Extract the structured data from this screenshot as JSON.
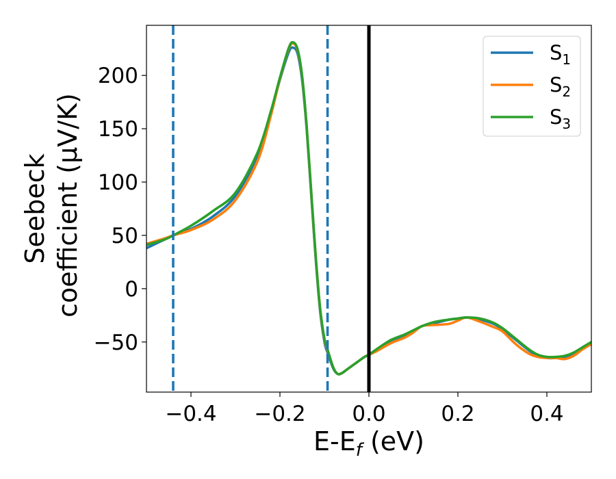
{
  "chart_data": {
    "type": "line",
    "xlabel": "E-E",
    "xlabel_subscript": "f",
    "xlabel_unit": " (eV)",
    "ylabel_line1": "Seebeck",
    "ylabel_line2": "coefficient  (μV/K)",
    "xlim": [
      -0.5,
      0.5
    ],
    "ylim": [
      -97,
      247
    ],
    "xticks": [
      -0.4,
      -0.2,
      0.0,
      0.2,
      0.4
    ],
    "xtick_labels": [
      "−0.4",
      "−0.2",
      "0.0",
      "0.2",
      "0.4"
    ],
    "yticks": [
      -50,
      0,
      50,
      100,
      150,
      200
    ],
    "ytick_labels": [
      "−50",
      "0",
      "50",
      "100",
      "150",
      "200"
    ],
    "grid": false,
    "legend_position": "top-right",
    "vertical_lines": [
      {
        "x": -0.44,
        "style": "dashed",
        "color": "#1f77b4"
      },
      {
        "x": -0.093,
        "style": "dashed",
        "color": "#1f77b4"
      },
      {
        "x": 0.0,
        "style": "solid",
        "color": "#000000"
      }
    ],
    "series": [
      {
        "name": "S",
        "subscript": "1",
        "color": "#1f77b4",
        "x": [
          -0.5,
          -0.46,
          -0.44,
          -0.4,
          -0.35,
          -0.3,
          -0.25,
          -0.22,
          -0.2,
          -0.18,
          -0.17,
          -0.16,
          -0.15,
          -0.14,
          -0.13,
          -0.12,
          -0.11,
          -0.1,
          -0.093,
          -0.08,
          -0.07,
          -0.06,
          -0.05,
          -0.03,
          -0.01,
          0.0,
          0.02,
          0.05,
          0.08,
          0.1,
          0.12,
          0.15,
          0.18,
          0.2,
          0.22,
          0.25,
          0.28,
          0.3,
          0.33,
          0.36,
          0.38,
          0.4,
          0.42,
          0.44,
          0.46,
          0.48,
          0.5
        ],
        "y": [
          38,
          46,
          50,
          56,
          68,
          87,
          125,
          165,
          196,
          222,
          226,
          220,
          195,
          150,
          90,
          30,
          -20,
          -50,
          -60,
          -75,
          -80,
          -79,
          -76,
          -70,
          -64,
          -62,
          -57,
          -50,
          -44,
          -40,
          -35,
          -32,
          -29,
          -28,
          -27,
          -29,
          -33,
          -38,
          -48,
          -58,
          -63,
          -65,
          -65,
          -64,
          -61,
          -56,
          -51
        ]
      },
      {
        "name": "S",
        "subscript": "2",
        "color": "#ff7f0e",
        "x": [
          -0.5,
          -0.46,
          -0.44,
          -0.4,
          -0.35,
          -0.3,
          -0.25,
          -0.22,
          -0.2,
          -0.18,
          -0.17,
          -0.16,
          -0.15,
          -0.14,
          -0.13,
          -0.12,
          -0.11,
          -0.1,
          -0.093,
          -0.08,
          -0.07,
          -0.06,
          -0.05,
          -0.03,
          -0.01,
          0.0,
          0.02,
          0.05,
          0.08,
          0.1,
          0.12,
          0.15,
          0.18,
          0.2,
          0.22,
          0.25,
          0.28,
          0.3,
          0.33,
          0.36,
          0.38,
          0.4,
          0.42,
          0.44,
          0.46,
          0.48,
          0.5
        ],
        "y": [
          42,
          47,
          50,
          55,
          65,
          83,
          120,
          163,
          197,
          225,
          230,
          223,
          198,
          152,
          92,
          32,
          -18,
          -48,
          -58,
          -74,
          -80,
          -79,
          -76,
          -70,
          -64,
          -62,
          -58,
          -51,
          -46,
          -41,
          -35,
          -34,
          -33,
          -30,
          -27,
          -31,
          -36,
          -40,
          -52,
          -61,
          -64,
          -65,
          -65,
          -66,
          -63,
          -57,
          -52
        ]
      },
      {
        "name": "S",
        "subscript": "3",
        "color": "#2ca02c",
        "x": [
          -0.5,
          -0.46,
          -0.44,
          -0.4,
          -0.35,
          -0.3,
          -0.25,
          -0.22,
          -0.2,
          -0.18,
          -0.17,
          -0.16,
          -0.15,
          -0.14,
          -0.13,
          -0.12,
          -0.11,
          -0.1,
          -0.093,
          -0.08,
          -0.07,
          -0.06,
          -0.05,
          -0.03,
          -0.01,
          0.0,
          0.02,
          0.05,
          0.08,
          0.1,
          0.12,
          0.15,
          0.18,
          0.2,
          0.22,
          0.25,
          0.28,
          0.3,
          0.33,
          0.36,
          0.38,
          0.4,
          0.42,
          0.44,
          0.46,
          0.48,
          0.5
        ],
        "y": [
          41,
          46,
          50,
          59,
          73,
          90,
          128,
          167,
          198,
          226,
          231,
          224,
          199,
          153,
          93,
          33,
          -17,
          -47,
          -57,
          -74,
          -80,
          -79,
          -76,
          -70,
          -64,
          -62,
          -56,
          -48,
          -43,
          -39,
          -35,
          -31,
          -29,
          -28,
          -27,
          -28,
          -32,
          -37,
          -47,
          -57,
          -62,
          -64,
          -64,
          -63,
          -60,
          -55,
          -50
        ]
      }
    ]
  }
}
